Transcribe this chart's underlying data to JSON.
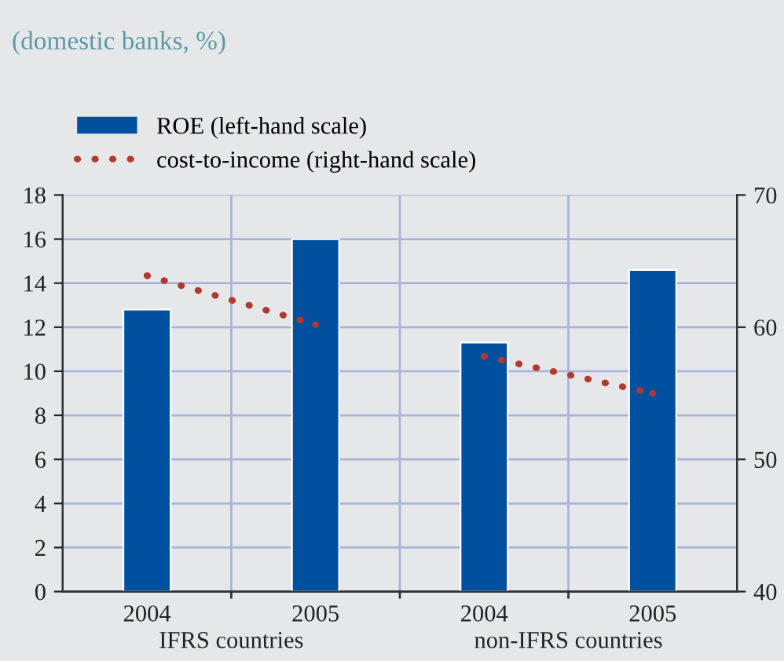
{
  "chart_data": {
    "type": "bar",
    "title": "(domestic banks, %)",
    "categories": [
      "2004",
      "2005",
      "2004",
      "2005"
    ],
    "series": [
      {
        "name": "ROE (left-hand scale)",
        "color": "#0050a0",
        "values": [
          12.8,
          16.0,
          11.3,
          14.6
        ]
      },
      {
        "name": "cost-to-income (right-hand scale)",
        "type": "line",
        "axis": "y2",
        "color": "#b03a2e",
        "line_style": "dotted",
        "marker": "circle",
        "values": [
          63.9,
          60.2,
          null,
          null
        ]
      },
      {
        "type": "line",
        "axis": "y2",
        "color": "#b03a2e",
        "line_style": "dotted",
        "marker": "circle",
        "values": [
          null,
          null,
          57.8,
          55.0
        ]
      }
    ],
    "ylim": [
      0,
      18
    ],
    "yticks": [
      0,
      2,
      4,
      6,
      8,
      10,
      12,
      14,
      16,
      18
    ],
    "y2lim": [
      40,
      70
    ],
    "y2ticks": [
      40,
      50,
      60,
      70
    ],
    "annotations": [
      "IFRS countries",
      "non-IFRS countries"
    ],
    "grid": true,
    "legend": "top left"
  }
}
